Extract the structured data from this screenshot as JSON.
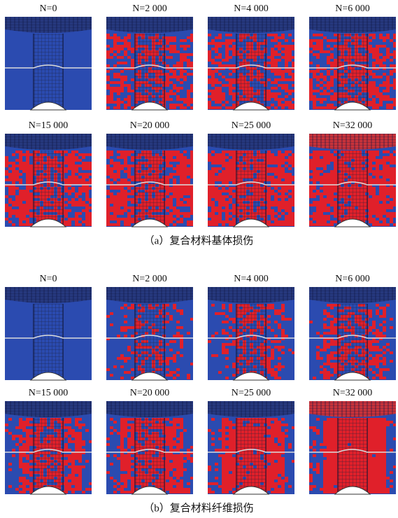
{
  "panels": [
    {
      "caption": "（a）复合材料基体损伤",
      "labels": [
        "N=0",
        "N=2 000",
        "N=4 000",
        "N=6 000",
        "N=15 000",
        "N=20 000",
        "N=25 000",
        "N=32 000"
      ]
    },
    {
      "caption": "（b）复合材料纤维损伤",
      "labels": [
        "N=0",
        "N=2 000",
        "N=4 000",
        "N=6 000",
        "N=15 000",
        "N=20 000",
        "N=25 000",
        "N=32 000"
      ]
    }
  ]
}
